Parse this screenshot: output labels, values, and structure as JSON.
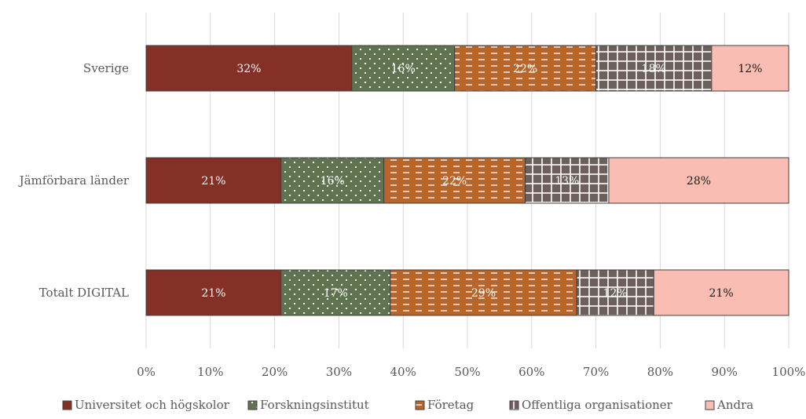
{
  "chart_data": {
    "type": "bar",
    "orientation": "horizontal",
    "stacked": "percent",
    "categories": [
      "Sverige",
      "Jämförbara länder",
      "Totalt DIGITAL"
    ],
    "series": [
      {
        "name": "Universitet och högskolor",
        "values": [
          32,
          21,
          21
        ],
        "labels": [
          "32%",
          "21%",
          "21%"
        ],
        "color": "#843026",
        "pattern": "solid"
      },
      {
        "name": "Forskningsinstitut",
        "values": [
          16,
          16,
          17
        ],
        "labels": [
          "16%",
          "16%",
          "17%"
        ],
        "color": "#5F7350",
        "pattern": "dots"
      },
      {
        "name": "Företag",
        "values": [
          22,
          22,
          29
        ],
        "labels": [
          "22%",
          "22%",
          "29%"
        ],
        "color": "#B7652A",
        "pattern": "dashes"
      },
      {
        "name": "Offentliga organisationer",
        "values": [
          18,
          13,
          12
        ],
        "labels": [
          "18%",
          "13%",
          "12%"
        ],
        "color": "#6B605B",
        "pattern": "grid"
      },
      {
        "name": "Andra",
        "values": [
          12,
          28,
          21
        ],
        "labels": [
          "12%",
          "28%",
          "21%"
        ],
        "color": "#F9BDB3",
        "pattern": "solid"
      }
    ],
    "x_ticks": [
      "0%",
      "10%",
      "20%",
      "30%",
      "40%",
      "50%",
      "60%",
      "70%",
      "80%",
      "90%",
      "100%"
    ],
    "xlim": [
      0,
      100
    ],
    "grid": true,
    "legend": "bottom"
  }
}
